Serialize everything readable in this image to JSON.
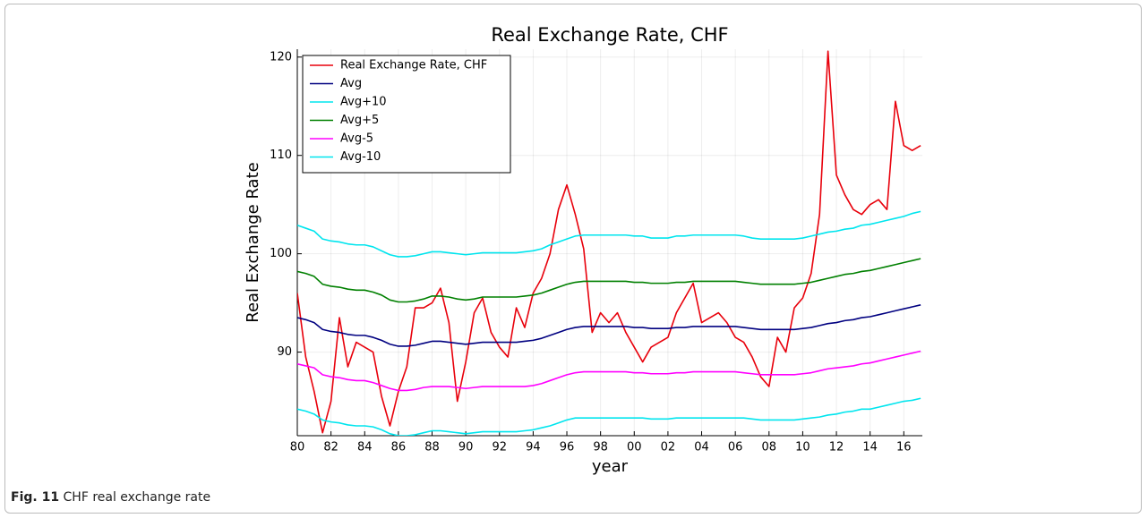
{
  "chart_data": {
    "type": "line",
    "title": "Real Exchange Rate, CHF",
    "xlabel": "year",
    "ylabel": "Real Exchange Rate",
    "caption_label": "Fig. 11",
    "caption": "CHF real exchange rate",
    "grid": true,
    "legend": "top-left",
    "xlim": [
      1980,
      2017.1
    ],
    "ylim": [
      81.5,
      120.8
    ],
    "xticks": [
      {
        "value": 1980,
        "label": "80"
      },
      {
        "value": 1982,
        "label": "82"
      },
      {
        "value": 1984,
        "label": "84"
      },
      {
        "value": 1986,
        "label": "86"
      },
      {
        "value": 1988,
        "label": "88"
      },
      {
        "value": 1990,
        "label": "90"
      },
      {
        "value": 1992,
        "label": "92"
      },
      {
        "value": 1994,
        "label": "94"
      },
      {
        "value": 1996,
        "label": "96"
      },
      {
        "value": 1998,
        "label": "98"
      },
      {
        "value": 2000,
        "label": "00"
      },
      {
        "value": 2002,
        "label": "02"
      },
      {
        "value": 2004,
        "label": "04"
      },
      {
        "value": 2006,
        "label": "06"
      },
      {
        "value": 2008,
        "label": "08"
      },
      {
        "value": 2010,
        "label": "10"
      },
      {
        "value": 2012,
        "label": "12"
      },
      {
        "value": 2014,
        "label": "14"
      },
      {
        "value": 2016,
        "label": "16"
      }
    ],
    "yticks": [
      90,
      100,
      110,
      120
    ],
    "x": [
      1980,
      1980.5,
      1981,
      1981.5,
      1982,
      1982.5,
      1983,
      1983.5,
      1984,
      1984.5,
      1985,
      1985.5,
      1986,
      1986.5,
      1987,
      1987.5,
      1988,
      1988.5,
      1989,
      1989.5,
      1990,
      1990.5,
      1991,
      1991.5,
      1992,
      1992.5,
      1993,
      1993.5,
      1994,
      1994.5,
      1995,
      1995.5,
      1996,
      1996.5,
      1997,
      1997.5,
      1998,
      1998.5,
      1999,
      1999.5,
      2000,
      2000.5,
      2001,
      2001.5,
      2002,
      2002.5,
      2003,
      2003.5,
      2004,
      2004.5,
      2005,
      2005.5,
      2006,
      2006.5,
      2007,
      2007.5,
      2008,
      2008.5,
      2009,
      2009.5,
      2010,
      2010.5,
      2011,
      2011.5,
      2012,
      2012.5,
      2013,
      2013.5,
      2014,
      2014.5,
      2015,
      2015.5,
      2016,
      2016.5,
      2017
    ],
    "series": [
      {
        "name": "Real Exchange Rate, CHF",
        "color": "#e8000b",
        "values": [
          96,
          89.5,
          86,
          81.8,
          85,
          93.5,
          88.5,
          91,
          90.5,
          90,
          85.5,
          82.5,
          86,
          88.5,
          94.5,
          94.5,
          95,
          96.5,
          93,
          85,
          89,
          94,
          95.5,
          92,
          90.5,
          89.5,
          94.5,
          92.5,
          96,
          97.5,
          100,
          104.5,
          107,
          104,
          100.5,
          92,
          94,
          93,
          94,
          92,
          90.5,
          89,
          90.5,
          91,
          91.5,
          94,
          95.5,
          97,
          93,
          93.5,
          94,
          93,
          91.5,
          91,
          89.5,
          87.5,
          86.5,
          91.5,
          90,
          94.5,
          95.5,
          98,
          104,
          120.6,
          108,
          106,
          104.5,
          104,
          105,
          105.5,
          104.5,
          115.5,
          111,
          110.5,
          111
        ]
      },
      {
        "name": "Avg",
        "color": "#000080",
        "values": [
          93.5,
          93.3,
          93.0,
          92.3,
          92.1,
          92.0,
          91.8,
          91.7,
          91.7,
          91.5,
          91.2,
          90.8,
          90.6,
          90.6,
          90.7,
          90.9,
          91.1,
          91.1,
          91.0,
          90.9,
          90.8,
          90.9,
          91.0,
          91.0,
          91.0,
          91.0,
          91.0,
          91.1,
          91.2,
          91.4,
          91.7,
          92.0,
          92.3,
          92.5,
          92.6,
          92.6,
          92.6,
          92.6,
          92.6,
          92.6,
          92.5,
          92.5,
          92.4,
          92.4,
          92.4,
          92.5,
          92.5,
          92.6,
          92.6,
          92.6,
          92.6,
          92.6,
          92.6,
          92.5,
          92.4,
          92.3,
          92.3,
          92.3,
          92.3,
          92.3,
          92.4,
          92.5,
          92.7,
          92.9,
          93.0,
          93.2,
          93.3,
          93.5,
          93.6,
          93.8,
          94.0,
          94.2,
          94.4,
          94.6,
          94.8
        ]
      },
      {
        "name": "Avg+10",
        "color": "#00e5ee",
        "values": [
          102.9,
          102.6,
          102.3,
          101.5,
          101.3,
          101.2,
          101.0,
          100.9,
          100.9,
          100.7,
          100.3,
          99.9,
          99.7,
          99.7,
          99.8,
          100.0,
          100.2,
          100.2,
          100.1,
          100.0,
          99.9,
          100.0,
          100.1,
          100.1,
          100.1,
          100.1,
          100.1,
          100.2,
          100.3,
          100.5,
          100.9,
          101.2,
          101.5,
          101.8,
          101.9,
          101.9,
          101.9,
          101.9,
          101.9,
          101.9,
          101.8,
          101.8,
          101.6,
          101.6,
          101.6,
          101.8,
          101.8,
          101.9,
          101.9,
          101.9,
          101.9,
          101.9,
          101.9,
          101.8,
          101.6,
          101.5,
          101.5,
          101.5,
          101.5,
          101.5,
          101.6,
          101.8,
          102.0,
          102.2,
          102.3,
          102.5,
          102.6,
          102.9,
          103.0,
          103.2,
          103.4,
          103.6,
          103.8,
          104.1,
          104.3
        ]
      },
      {
        "name": "Avg+5",
        "color": "#008000",
        "values": [
          98.2,
          98.0,
          97.7,
          96.9,
          96.7,
          96.6,
          96.4,
          96.3,
          96.3,
          96.1,
          95.8,
          95.3,
          95.1,
          95.1,
          95.2,
          95.4,
          95.7,
          95.7,
          95.6,
          95.4,
          95.3,
          95.4,
          95.6,
          95.6,
          95.6,
          95.6,
          95.6,
          95.7,
          95.8,
          96.0,
          96.3,
          96.6,
          96.9,
          97.1,
          97.2,
          97.2,
          97.2,
          97.2,
          97.2,
          97.2,
          97.1,
          97.1,
          97.0,
          97.0,
          97.0,
          97.1,
          97.1,
          97.2,
          97.2,
          97.2,
          97.2,
          97.2,
          97.2,
          97.1,
          97.0,
          96.9,
          96.9,
          96.9,
          96.9,
          96.9,
          97.0,
          97.1,
          97.3,
          97.5,
          97.7,
          97.9,
          98.0,
          98.2,
          98.3,
          98.5,
          98.7,
          98.9,
          99.1,
          99.3,
          99.5
        ]
      },
      {
        "name": "Avg-5",
        "color": "#ff00ff",
        "values": [
          88.8,
          88.6,
          88.4,
          87.7,
          87.5,
          87.4,
          87.2,
          87.1,
          87.1,
          86.9,
          86.6,
          86.3,
          86.1,
          86.1,
          86.2,
          86.4,
          86.5,
          86.5,
          86.5,
          86.4,
          86.3,
          86.4,
          86.5,
          86.5,
          86.5,
          86.5,
          86.5,
          86.5,
          86.6,
          86.8,
          87.1,
          87.4,
          87.7,
          87.9,
          88.0,
          88.0,
          88.0,
          88.0,
          88.0,
          88.0,
          87.9,
          87.9,
          87.8,
          87.8,
          87.8,
          87.9,
          87.9,
          88.0,
          88.0,
          88.0,
          88.0,
          88.0,
          88.0,
          87.9,
          87.8,
          87.7,
          87.7,
          87.7,
          87.7,
          87.7,
          87.8,
          87.9,
          88.1,
          88.3,
          88.4,
          88.5,
          88.6,
          88.8,
          88.9,
          89.1,
          89.3,
          89.5,
          89.7,
          89.9,
          90.1
        ]
      },
      {
        "name": "Avg-10",
        "color": "#00e5ee",
        "values": [
          84.2,
          84.0,
          83.7,
          83.1,
          82.9,
          82.8,
          82.6,
          82.5,
          82.5,
          82.4,
          82.1,
          81.7,
          81.5,
          81.5,
          81.6,
          81.8,
          82.0,
          82.0,
          81.9,
          81.8,
          81.7,
          81.8,
          81.9,
          81.9,
          81.9,
          81.9,
          81.9,
          82.0,
          82.1,
          82.3,
          82.5,
          82.8,
          83.1,
          83.3,
          83.3,
          83.3,
          83.3,
          83.3,
          83.3,
          83.3,
          83.3,
          83.3,
          83.2,
          83.2,
          83.2,
          83.3,
          83.3,
          83.3,
          83.3,
          83.3,
          83.3,
          83.3,
          83.3,
          83.3,
          83.2,
          83.1,
          83.1,
          83.1,
          83.1,
          83.1,
          83.2,
          83.3,
          83.4,
          83.6,
          83.7,
          83.9,
          84.0,
          84.2,
          84.2,
          84.4,
          84.6,
          84.8,
          85.0,
          85.1,
          85.3
        ]
      }
    ]
  }
}
